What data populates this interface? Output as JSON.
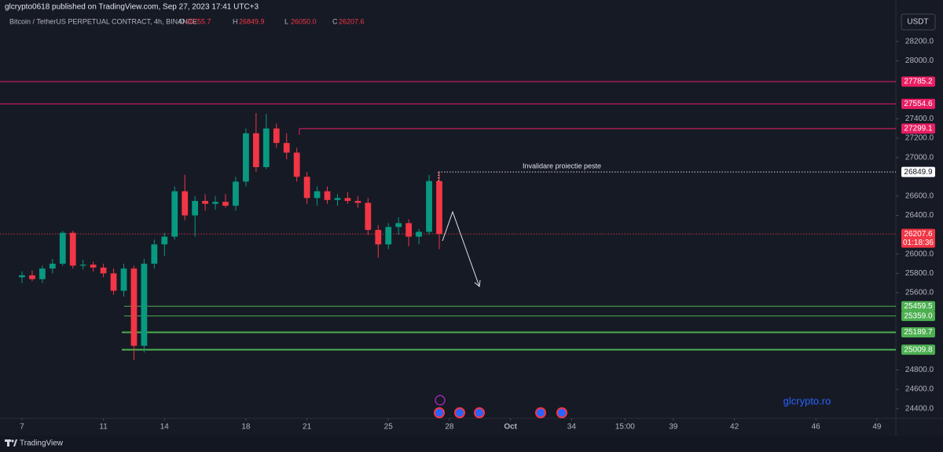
{
  "chart_data": {
    "type": "candlestick",
    "header": "glcrypto0618 published on TradingView.com, Sep 27, 2023 17:41 UTC+3",
    "symbol": "Bitcoin / TetherUS PERPETUAL CONTRACT, 4h, BINANCE",
    "ohlc": [
      {
        "key": "O",
        "value": 26755.7
      },
      {
        "key": "H",
        "value": 26849.9
      },
      {
        "key": "L",
        "value": {
          "value": 26050,
          "label": "26050.0"
        }
      },
      {
        "key": "C",
        "value": 26207.6
      }
    ],
    "currency": "USDT",
    "countdown": "01:18:36",
    "annotation": "Invalidare proiectie peste",
    "watermark": "glcrypto.ro",
    "footer": "TradingView",
    "up_color": "#089981",
    "down_color": "#f23645",
    "grid": false,
    "x": [
      7,
      7.5,
      8,
      8.5,
      9,
      9.5,
      10,
      10.5,
      11,
      11.5,
      12,
      12.5,
      13,
      13.5,
      14,
      14.5,
      15,
      15.5,
      16,
      16.5,
      17,
      17.5,
      18,
      18.5,
      19,
      19.5,
      20,
      20.5,
      21,
      21.5,
      22,
      22.5,
      23,
      23.5,
      24,
      24.5,
      25,
      25.5,
      26,
      26.5,
      27,
      27.5
    ],
    "open": [
      25760,
      25780,
      25740,
      25850,
      25900,
      26220,
      25880,
      25890,
      25860,
      25800,
      25620,
      25850,
      25050,
      25900,
      26100,
      26180,
      26650,
      26400,
      26550,
      26520,
      26540,
      26500,
      26750,
      27250,
      26900,
      27300,
      27150,
      27050,
      26800,
      26580,
      26650,
      26560,
      26580,
      26550,
      26530,
      26250,
      26100,
      26280,
      26320,
      26180,
      26230,
      26755.7
    ],
    "high": [
      25820,
      25830,
      25880,
      25950,
      26240,
      26240,
      25940,
      25920,
      25900,
      25850,
      25900,
      25880,
      25950,
      26150,
      26220,
      26700,
      26820,
      26600,
      26620,
      26600,
      26620,
      26800,
      27300,
      27460,
      27450,
      27350,
      27250,
      27100,
      26850,
      26700,
      26700,
      26620,
      26640,
      26600,
      26580,
      26300,
      26320,
      26380,
      26360,
      26260,
      26820,
      26849.9
    ],
    "low": [
      25700,
      25720,
      25700,
      25800,
      25880,
      25850,
      25840,
      25820,
      25760,
      25580,
      25560,
      24900,
      24980,
      25850,
      25980,
      26150,
      26350,
      26180,
      26450,
      26460,
      26480,
      26450,
      26700,
      26850,
      26880,
      27100,
      26980,
      26750,
      26520,
      26500,
      26520,
      26500,
      26520,
      26480,
      26200,
      25960,
      26050,
      26200,
      26080,
      26100,
      26200,
      26050
    ],
    "close": [
      25780,
      25740,
      25850,
      25900,
      26220,
      25880,
      25890,
      25860,
      25800,
      25620,
      25850,
      25050,
      25900,
      26100,
      26180,
      26650,
      26400,
      26550,
      26520,
      26540,
      26500,
      26750,
      27250,
      26900,
      27300,
      27150,
      27050,
      26800,
      26580,
      26650,
      26560,
      26580,
      26550,
      26530,
      26250,
      26100,
      26280,
      26320,
      26180,
      26230,
      26755.7,
      26207.6
    ],
    "levels": [
      {
        "value": 27785.2,
        "label": "27785.2",
        "color": "#e91e63"
      },
      {
        "value": 27554.6,
        "label": "27554.6",
        "color": "#e91e63"
      },
      {
        "value": 27299.1,
        "label": "27299.1",
        "color": "#e91e63"
      },
      {
        "value": 26849.9,
        "label": "26849.9",
        "color": "#ffffff"
      },
      {
        "value": 26207.6,
        "label": "26207.6",
        "color": "#f23645"
      },
      {
        "value": 25459.5,
        "label": "25459.5",
        "color": "#4caf50"
      },
      {
        "value": 25359,
        "label": "25359.0",
        "color": "#4caf50"
      },
      {
        "value": 25189.7,
        "label": "25189.7",
        "color": "#4caf50"
      },
      {
        "value": 25009.8,
        "label": "25009.8",
        "color": "#4caf50"
      }
    ],
    "xlim": [
      5.92,
      49.93
    ],
    "xticks": [
      7,
      11,
      14,
      18,
      21,
      25,
      28,
      {
        "value": 31,
        "label": "Oct"
      },
      34,
      {
        "value": 36.625,
        "label": "15:00"
      },
      39,
      42,
      46,
      49
    ],
    "ylim": [
      24300,
      28630
    ],
    "yticks": [
      {
        "value": 24400,
        "label": "24400.0"
      },
      {
        "value": 24600,
        "label": "24600.0"
      },
      {
        "value": 24800,
        "label": "24800.0"
      },
      {
        "value": 25600,
        "label": "25600.0"
      },
      {
        "value": 25800,
        "label": "25800.0"
      },
      {
        "value": 26000,
        "label": "26000.0"
      },
      {
        "value": 26400,
        "label": "26400.0"
      },
      {
        "value": 26600,
        "label": "26600.0"
      },
      {
        "value": 27000,
        "label": "27000.0"
      },
      {
        "value": 27200,
        "label": "27200.0"
      },
      {
        "value": 27400,
        "label": "27400.0"
      },
      {
        "value": 28000,
        "label": "28000.0"
      },
      {
        "value": 28200,
        "label": "28200.0"
      }
    ]
  }
}
